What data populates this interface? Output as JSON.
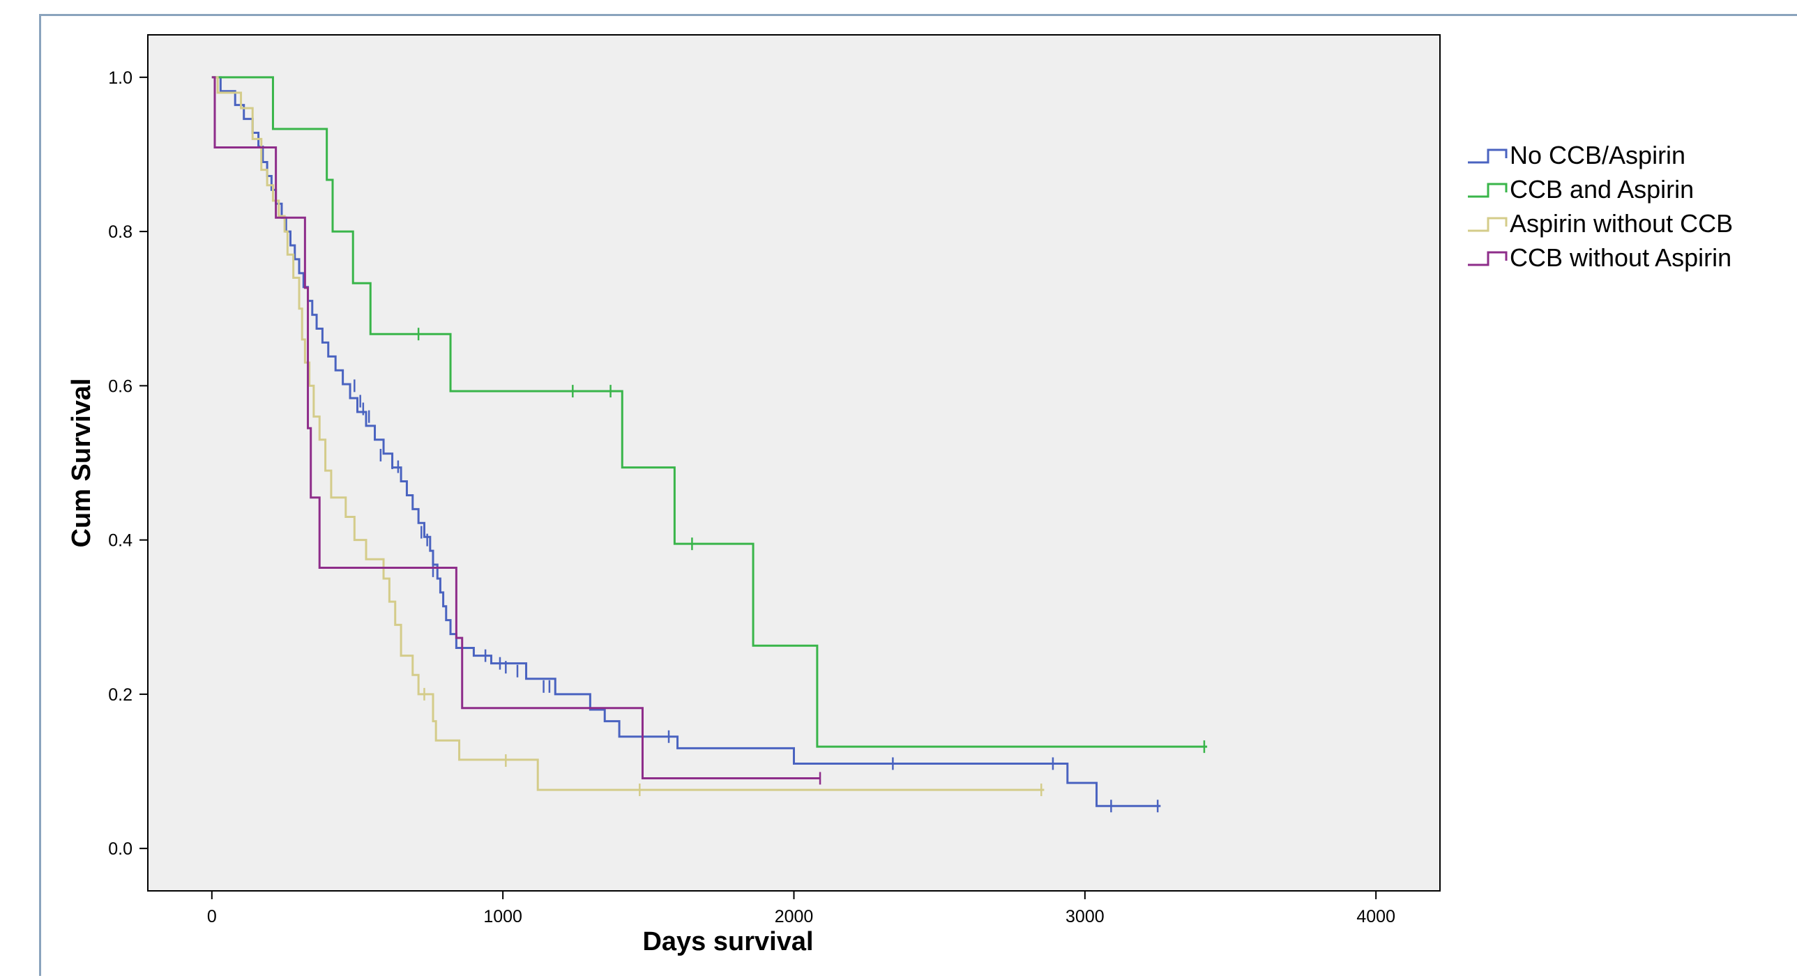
{
  "caption": "",
  "chart_data": {
    "type": "line",
    "title": "",
    "xlabel": "Days survival",
    "ylabel": "Cum Survival",
    "xlim": [
      -220,
      4220
    ],
    "ylim": [
      -0.055,
      1.055
    ],
    "x_ticks": [
      0,
      1000,
      2000,
      3000,
      4000
    ],
    "y_ticks": [
      0.0,
      0.2,
      0.4,
      0.6,
      0.8,
      1.0
    ],
    "x_tick_labels": [
      "0",
      "1000",
      "2000",
      "3000",
      "4000"
    ],
    "y_tick_labels": [
      "0.0",
      "0.2",
      "0.4",
      "0.6",
      "0.8",
      "1.0"
    ],
    "grid": false,
    "legend_position": "right-top",
    "step": true,
    "series": [
      {
        "name": "No CCB/Aspirin",
        "color": "#4a63c0",
        "points": [
          [
            0,
            1.0
          ],
          [
            30,
            0.982
          ],
          [
            80,
            0.964
          ],
          [
            110,
            0.946
          ],
          [
            140,
            0.928
          ],
          [
            160,
            0.91
          ],
          [
            175,
            0.89
          ],
          [
            190,
            0.872
          ],
          [
            205,
            0.854
          ],
          [
            220,
            0.836
          ],
          [
            240,
            0.818
          ],
          [
            255,
            0.8
          ],
          [
            270,
            0.782
          ],
          [
            285,
            0.764
          ],
          [
            300,
            0.746
          ],
          [
            315,
            0.728
          ],
          [
            330,
            0.71
          ],
          [
            345,
            0.692
          ],
          [
            360,
            0.674
          ],
          [
            380,
            0.656
          ],
          [
            400,
            0.638
          ],
          [
            425,
            0.62
          ],
          [
            450,
            0.602
          ],
          [
            475,
            0.584
          ],
          [
            500,
            0.566
          ],
          [
            530,
            0.548
          ],
          [
            560,
            0.53
          ],
          [
            590,
            0.512
          ],
          [
            620,
            0.494
          ],
          [
            650,
            0.476
          ],
          [
            670,
            0.458
          ],
          [
            690,
            0.44
          ],
          [
            710,
            0.422
          ],
          [
            730,
            0.404
          ],
          [
            750,
            0.386
          ],
          [
            760,
            0.368
          ],
          [
            775,
            0.35
          ],
          [
            785,
            0.332
          ],
          [
            795,
            0.314
          ],
          [
            805,
            0.296
          ],
          [
            820,
            0.278
          ],
          [
            840,
            0.26
          ],
          [
            900,
            0.25
          ],
          [
            960,
            0.24
          ],
          [
            1080,
            0.22
          ],
          [
            1180,
            0.2
          ],
          [
            1300,
            0.18
          ],
          [
            1350,
            0.165
          ],
          [
            1400,
            0.145
          ],
          [
            1600,
            0.13
          ],
          [
            2000,
            0.11
          ],
          [
            2940,
            0.085
          ],
          [
            3040,
            0.055
          ]
        ],
        "end": 3260,
        "censors": [
          [
            490,
            0.6
          ],
          [
            510,
            0.58
          ],
          [
            520,
            0.57
          ],
          [
            540,
            0.56
          ],
          [
            580,
            0.51
          ],
          [
            620,
            0.5
          ],
          [
            640,
            0.495
          ],
          [
            720,
            0.41
          ],
          [
            740,
            0.4
          ],
          [
            760,
            0.36
          ],
          [
            940,
            0.25
          ],
          [
            990,
            0.24
          ],
          [
            1010,
            0.235
          ],
          [
            1050,
            0.23
          ],
          [
            1140,
            0.21
          ],
          [
            1160,
            0.21
          ],
          [
            1570,
            0.145
          ],
          [
            2340,
            0.11
          ],
          [
            2890,
            0.11
          ],
          [
            3090,
            0.055
          ],
          [
            3250,
            0.055
          ]
        ]
      },
      {
        "name": "CCB and Aspirin",
        "color": "#39b54a",
        "points": [
          [
            0,
            1.0
          ],
          [
            210,
            0.933
          ],
          [
            395,
            0.867
          ],
          [
            415,
            0.8
          ],
          [
            485,
            0.733
          ],
          [
            545,
            0.667
          ],
          [
            820,
            0.593
          ],
          [
            1410,
            0.494
          ],
          [
            1590,
            0.395
          ],
          [
            1860,
            0.263
          ],
          [
            2080,
            0.132
          ]
        ],
        "end": 3420,
        "censors": [
          [
            710,
            0.667
          ],
          [
            1240,
            0.593
          ],
          [
            1370,
            0.593
          ],
          [
            1650,
            0.395
          ],
          [
            3410,
            0.132
          ]
        ]
      },
      {
        "name": "Aspirin without CCB",
        "color": "#d4cc8a",
        "points": [
          [
            0,
            1.0
          ],
          [
            20,
            0.98
          ],
          [
            100,
            0.96
          ],
          [
            140,
            0.92
          ],
          [
            170,
            0.88
          ],
          [
            190,
            0.86
          ],
          [
            210,
            0.84
          ],
          [
            230,
            0.82
          ],
          [
            250,
            0.8
          ],
          [
            260,
            0.77
          ],
          [
            280,
            0.74
          ],
          [
            300,
            0.7
          ],
          [
            310,
            0.66
          ],
          [
            320,
            0.63
          ],
          [
            335,
            0.6
          ],
          [
            350,
            0.56
          ],
          [
            370,
            0.53
          ],
          [
            390,
            0.49
          ],
          [
            410,
            0.455
          ],
          [
            460,
            0.43
          ],
          [
            490,
            0.4
          ],
          [
            530,
            0.375
          ],
          [
            590,
            0.35
          ],
          [
            610,
            0.32
          ],
          [
            630,
            0.29
          ],
          [
            650,
            0.25
          ],
          [
            690,
            0.225
          ],
          [
            710,
            0.2
          ],
          [
            760,
            0.165
          ],
          [
            770,
            0.14
          ],
          [
            850,
            0.115
          ],
          [
            1120,
            0.076
          ]
        ],
        "end": 2860,
        "censors": [
          [
            730,
            0.2
          ],
          [
            1010,
            0.114
          ],
          [
            1470,
            0.076
          ],
          [
            2850,
            0.076
          ]
        ]
      },
      {
        "name": "CCB without Aspirin",
        "color": "#8e2d8a",
        "points": [
          [
            0,
            1.0
          ],
          [
            10,
            0.909
          ],
          [
            220,
            0.818
          ],
          [
            320,
            0.727
          ],
          [
            330,
            0.545
          ],
          [
            340,
            0.455
          ],
          [
            370,
            0.364
          ],
          [
            840,
            0.273
          ],
          [
            860,
            0.182
          ],
          [
            1480,
            0.091
          ]
        ],
        "end": 2090,
        "censors": [
          [
            2090,
            0.091
          ]
        ]
      }
    ]
  }
}
